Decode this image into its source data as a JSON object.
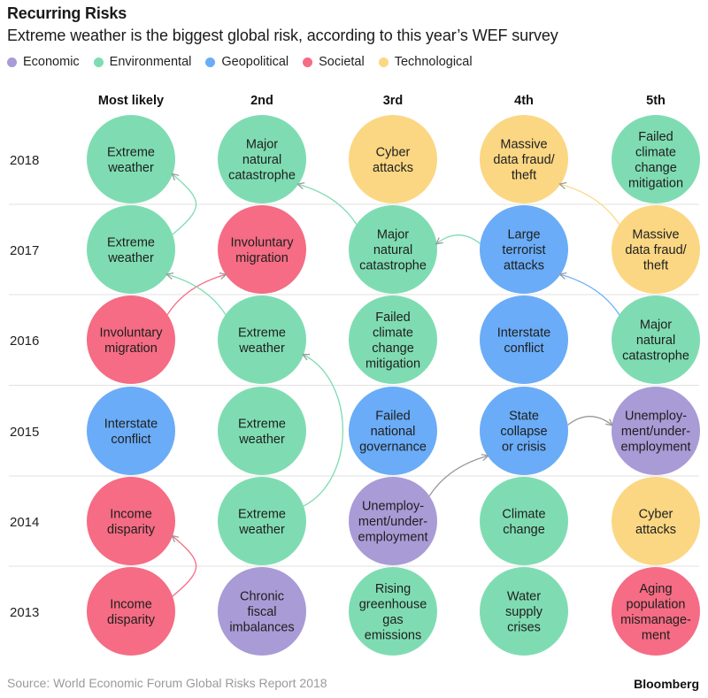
{
  "title": "Recurring Risks",
  "subtitle": "Extreme weather is the biggest global risk, according to this year’s WEF survey",
  "source": "Source: World Economic Forum Global Risks Report 2018",
  "brand": "Bloomberg",
  "colors": {
    "Economic": "#a99bd6",
    "Environmental": "#7fdcb2",
    "Geopolitical": "#6aacf7",
    "Societal": "#f56c84",
    "Technological": "#fbd783"
  },
  "chart_data": {
    "type": "table",
    "legend": [
      "Economic",
      "Environmental",
      "Geopolitical",
      "Societal",
      "Technological"
    ],
    "columns": [
      "Most likely",
      "2nd",
      "3rd",
      "4th",
      "5th"
    ],
    "rows": [
      "2018",
      "2017",
      "2016",
      "2015",
      "2014",
      "2013"
    ],
    "cells": [
      [
        {
          "label": [
            "Extreme",
            "weather"
          ],
          "category": "Environmental"
        },
        {
          "label": [
            "Major",
            "natural",
            "catastrophe"
          ],
          "category": "Environmental"
        },
        {
          "label": [
            "Cyber",
            "attacks"
          ],
          "category": "Technological"
        },
        {
          "label": [
            "Massive",
            "data fraud/",
            "theft"
          ],
          "category": "Technological"
        },
        {
          "label": [
            "Failed",
            "climate",
            "change",
            "mitigation"
          ],
          "category": "Environmental"
        }
      ],
      [
        {
          "label": [
            "Extreme",
            "weather"
          ],
          "category": "Environmental"
        },
        {
          "label": [
            "Involuntary",
            "migration"
          ],
          "category": "Societal"
        },
        {
          "label": [
            "Major",
            "natural",
            "catastrophe"
          ],
          "category": "Environmental"
        },
        {
          "label": [
            "Large",
            "terrorist",
            "attacks"
          ],
          "category": "Geopolitical"
        },
        {
          "label": [
            "Massive",
            "data fraud/",
            "theft"
          ],
          "category": "Technological"
        }
      ],
      [
        {
          "label": [
            "Involuntary",
            "migration"
          ],
          "category": "Societal"
        },
        {
          "label": [
            "Extreme",
            "weather"
          ],
          "category": "Environmental"
        },
        {
          "label": [
            "Failed",
            "climate",
            "change",
            "mitigation"
          ],
          "category": "Environmental"
        },
        {
          "label": [
            "Interstate",
            "conflict"
          ],
          "category": "Geopolitical"
        },
        {
          "label": [
            "Major",
            "natural",
            "catastrophe"
          ],
          "category": "Environmental"
        }
      ],
      [
        {
          "label": [
            "Interstate",
            "conflict"
          ],
          "category": "Geopolitical"
        },
        {
          "label": [
            "Extreme",
            "weather"
          ],
          "category": "Environmental"
        },
        {
          "label": [
            "Failed",
            "national",
            "governance"
          ],
          "category": "Geopolitical"
        },
        {
          "label": [
            "State",
            "collapse",
            "or crisis"
          ],
          "category": "Geopolitical"
        },
        {
          "label": [
            "Unemploy-",
            "ment/under-",
            "employment"
          ],
          "category": "Economic"
        }
      ],
      [
        {
          "label": [
            "Income",
            "disparity"
          ],
          "category": "Societal"
        },
        {
          "label": [
            "Extreme",
            "weather"
          ],
          "category": "Environmental"
        },
        {
          "label": [
            "Unemploy-",
            "ment/under-",
            "employment"
          ],
          "category": "Economic"
        },
        {
          "label": [
            "Climate",
            "change"
          ],
          "category": "Environmental"
        },
        {
          "label": [
            "Cyber",
            "attacks"
          ],
          "category": "Technological"
        }
      ],
      [
        {
          "label": [
            "Income",
            "disparity"
          ],
          "category": "Societal"
        },
        {
          "label": [
            "Chronic",
            "fiscal",
            "imbalances"
          ],
          "category": "Economic"
        },
        {
          "label": [
            "Rising",
            "greenhouse",
            "gas",
            "emissions"
          ],
          "category": "Environmental"
        },
        {
          "label": [
            "Water",
            "supply",
            "crises"
          ],
          "category": "Environmental"
        },
        {
          "label": [
            "Aging",
            "population",
            "mismanage-",
            "ment"
          ],
          "category": "Societal"
        }
      ]
    ],
    "arrows": [
      {
        "from": [
          "2013",
          "Most likely"
        ],
        "to": [
          "2014",
          "Most likely"
        ],
        "category": "Societal"
      },
      {
        "from": [
          "2016",
          "Most likely"
        ],
        "to": [
          "2017",
          "2nd"
        ],
        "category": "Societal"
      },
      {
        "from": [
          "2017",
          "Most likely"
        ],
        "to": [
          "2018",
          "Most likely"
        ],
        "category": "Environmental"
      },
      {
        "from": [
          "2016",
          "2nd"
        ],
        "to": [
          "2017",
          "Most likely"
        ],
        "category": "Environmental"
      },
      {
        "from": [
          "2014",
          "2nd"
        ],
        "to": [
          "2016",
          "2nd"
        ],
        "category": "Environmental"
      },
      {
        "from": [
          "2017",
          "3rd"
        ],
        "to": [
          "2018",
          "2nd"
        ],
        "category": "Environmental"
      },
      {
        "from": [
          "2016",
          "5th"
        ],
        "to": [
          "2017",
          "4th"
        ],
        "category": "Geopolitical"
      },
      {
        "from": [
          "2017",
          "4th"
        ],
        "to": [
          "2017",
          "3rd"
        ],
        "category": "Environmental"
      },
      {
        "from": [
          "2017",
          "5th"
        ],
        "to": [
          "2018",
          "4th"
        ],
        "category": "Technological"
      },
      {
        "from": [
          "2014",
          "3rd"
        ],
        "to": [
          "2015",
          "4th"
        ],
        "category": "Economic"
      },
      {
        "from": [
          "2015",
          "4th"
        ],
        "to": [
          "2015",
          "5th"
        ],
        "category": "Economic"
      }
    ]
  }
}
